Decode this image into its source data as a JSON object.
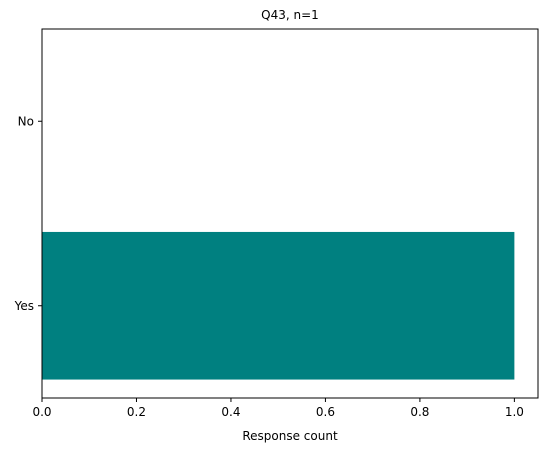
{
  "chart_data": {
    "type": "bar",
    "orientation": "horizontal",
    "title": "Q43, n=1",
    "xlabel": "Response count",
    "ylabel": "",
    "categories": [
      "Yes",
      "No"
    ],
    "values": [
      1,
      0
    ],
    "xlim": [
      0,
      1.05
    ],
    "x_ticks": [
      "0.0",
      "0.2",
      "0.4",
      "0.6",
      "0.8",
      "1.0"
    ],
    "bar_color": "#008080",
    "grid": false,
    "legend": "none"
  }
}
